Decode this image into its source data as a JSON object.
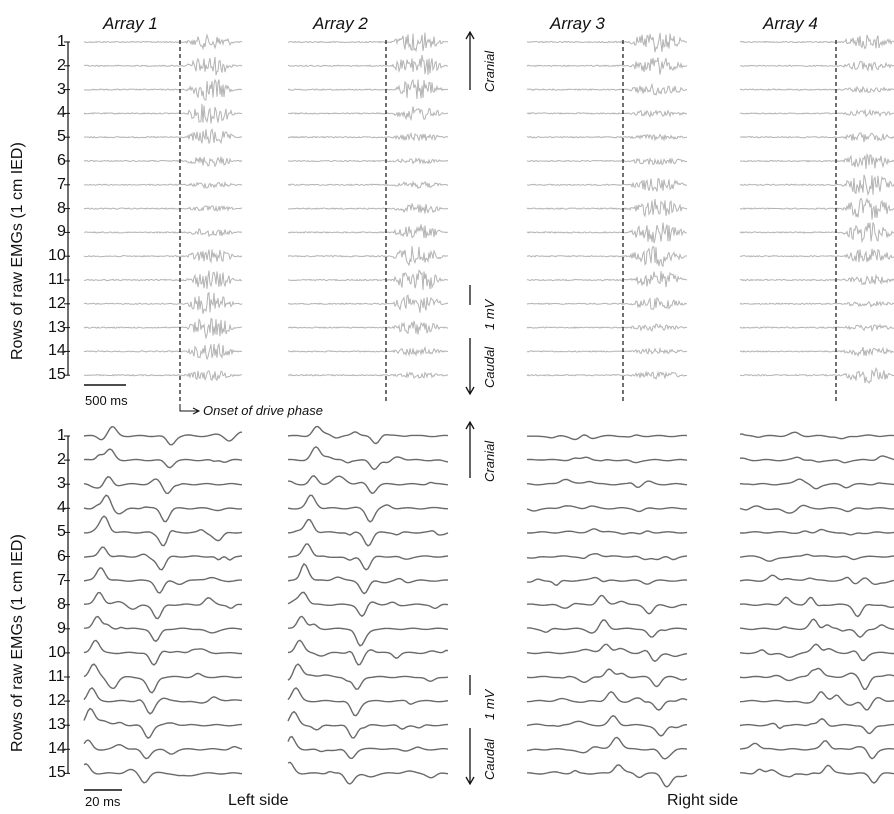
{
  "arrays": [
    "Array 1",
    "Array 2",
    "Array 3",
    "Array 4"
  ],
  "y_axis_label": "Rows of raw EMGs (1 cm IED)",
  "row_numbers": [
    "1",
    "2",
    "3",
    "4",
    "5",
    "6",
    "7",
    "8",
    "9",
    "10",
    "11",
    "12",
    "13",
    "14",
    "15"
  ],
  "direction": {
    "cranial": "Cranial",
    "caudal": "Caudal"
  },
  "amplitude_scale": "1 mV",
  "top_panel": {
    "time_scale": "500 ms",
    "onset_label": "Onset of drive phase"
  },
  "bottom_panel": {
    "time_scale": "20 ms"
  },
  "sides": {
    "left": "Left side",
    "right": "Right side"
  },
  "colors": {
    "top_traces": "#b3b3b3",
    "bottom_traces": "#6a6a6a",
    "axis": "#111111"
  }
}
